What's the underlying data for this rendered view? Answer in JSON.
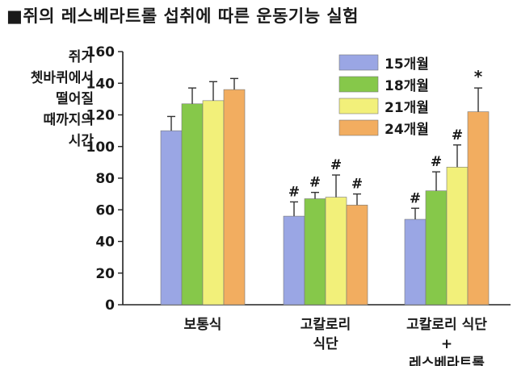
{
  "title": "■쥐의 레스베라트롤 섭취에 따른 운동기능 실험",
  "chart_data": {
    "type": "bar",
    "ylabel_lines": [
      "쥐가",
      "쳇바퀴에서",
      "떨어질",
      "때까지의",
      "시간"
    ],
    "categories": [
      [
        "보통식"
      ],
      [
        "고칼로리",
        "식단"
      ],
      [
        "고칼로리 식단",
        "+",
        "레스베라트롤"
      ]
    ],
    "ylim": [
      0,
      160
    ],
    "yticks": [
      "0",
      "20",
      "40",
      "60",
      "80",
      "100",
      "120",
      "140",
      "160"
    ],
    "series": [
      {
        "name": "15개월",
        "color": "#9aa6e4",
        "values": [
          110,
          56,
          54
        ],
        "errors": [
          9,
          9,
          7
        ],
        "annotations": [
          "",
          "#",
          "#"
        ]
      },
      {
        "name": "18개월",
        "color": "#86c84a",
        "values": [
          127,
          67,
          72
        ],
        "errors": [
          10,
          4,
          12
        ],
        "annotations": [
          "",
          "#",
          "#"
        ]
      },
      {
        "name": "21개월",
        "color": "#f2f07a",
        "values": [
          129,
          68,
          87
        ],
        "errors": [
          12,
          14,
          14
        ],
        "annotations": [
          "",
          "#",
          "#"
        ]
      },
      {
        "name": "24개월",
        "color": "#f2ad60",
        "values": [
          136,
          63,
          122
        ],
        "errors": [
          7,
          7,
          15
        ],
        "annotations": [
          "",
          "#",
          "*"
        ]
      }
    ],
    "legend_position": "top-right",
    "grid": false
  }
}
